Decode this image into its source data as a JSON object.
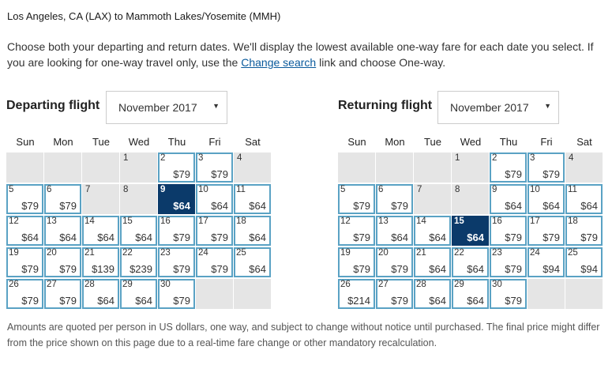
{
  "route": "Los Angeles, CA (LAX) to Mammoth Lakes/Yosemite (MMH)",
  "intro": {
    "before": "Choose both your departing and return dates. We'll display the lowest available one-way fare for each date you select. If you are looking for one-way travel only, use the ",
    "link": "Change search",
    "after": " link and choose One-way."
  },
  "weekdays": [
    "Sun",
    "Mon",
    "Tue",
    "Wed",
    "Thu",
    "Fri",
    "Sat"
  ],
  "departing": {
    "title": "Departing flight",
    "month": "November 2017",
    "caret_icon": "caret-down-icon",
    "weeks": [
      [
        null,
        null,
        null,
        {
          "day": "1"
        },
        {
          "day": "2",
          "price": "$79"
        },
        {
          "day": "3",
          "price": "$79"
        },
        {
          "day": "4"
        }
      ],
      [
        {
          "day": "5",
          "price": "$79"
        },
        {
          "day": "6",
          "price": "$79"
        },
        {
          "day": "7"
        },
        {
          "day": "8"
        },
        {
          "day": "9",
          "price": "$64",
          "selected": true
        },
        {
          "day": "10",
          "price": "$64"
        },
        {
          "day": "11",
          "price": "$64"
        }
      ],
      [
        {
          "day": "12",
          "price": "$64"
        },
        {
          "day": "13",
          "price": "$64"
        },
        {
          "day": "14",
          "price": "$64"
        },
        {
          "day": "15",
          "price": "$64"
        },
        {
          "day": "16",
          "price": "$79"
        },
        {
          "day": "17",
          "price": "$79"
        },
        {
          "day": "18",
          "price": "$64"
        }
      ],
      [
        {
          "day": "19",
          "price": "$79"
        },
        {
          "day": "20",
          "price": "$79"
        },
        {
          "day": "21",
          "price": "$139"
        },
        {
          "day": "22",
          "price": "$239"
        },
        {
          "day": "23",
          "price": "$79"
        },
        {
          "day": "24",
          "price": "$79"
        },
        {
          "day": "25",
          "price": "$64"
        }
      ],
      [
        {
          "day": "26",
          "price": "$79"
        },
        {
          "day": "27",
          "price": "$79"
        },
        {
          "day": "28",
          "price": "$64"
        },
        {
          "day": "29",
          "price": "$64"
        },
        {
          "day": "30",
          "price": "$79"
        },
        null,
        null
      ]
    ]
  },
  "returning": {
    "title": "Returning flight",
    "month": "November 2017",
    "caret_icon": "caret-down-icon",
    "weeks": [
      [
        null,
        null,
        null,
        {
          "day": "1"
        },
        {
          "day": "2",
          "price": "$79"
        },
        {
          "day": "3",
          "price": "$79"
        },
        {
          "day": "4"
        }
      ],
      [
        {
          "day": "5",
          "price": "$79"
        },
        {
          "day": "6",
          "price": "$79"
        },
        {
          "day": "7"
        },
        {
          "day": "8"
        },
        {
          "day": "9",
          "price": "$64"
        },
        {
          "day": "10",
          "price": "$64"
        },
        {
          "day": "11",
          "price": "$64"
        }
      ],
      [
        {
          "day": "12",
          "price": "$79"
        },
        {
          "day": "13",
          "price": "$64"
        },
        {
          "day": "14",
          "price": "$64"
        },
        {
          "day": "15",
          "price": "$64",
          "selected": true
        },
        {
          "day": "16",
          "price": "$79"
        },
        {
          "day": "17",
          "price": "$79"
        },
        {
          "day": "18",
          "price": "$79"
        }
      ],
      [
        {
          "day": "19",
          "price": "$79"
        },
        {
          "day": "20",
          "price": "$79"
        },
        {
          "day": "21",
          "price": "$64"
        },
        {
          "day": "22",
          "price": "$64"
        },
        {
          "day": "23",
          "price": "$79"
        },
        {
          "day": "24",
          "price": "$94"
        },
        {
          "day": "25",
          "price": "$94"
        }
      ],
      [
        {
          "day": "26",
          "price": "$214"
        },
        {
          "day": "27",
          "price": "$79"
        },
        {
          "day": "28",
          "price": "$64"
        },
        {
          "day": "29",
          "price": "$64"
        },
        {
          "day": "30",
          "price": "$79"
        },
        null,
        null
      ]
    ]
  },
  "footer": "Amounts are quoted per person in US dollars, one way, and subject to change without notice until purchased. The final price might differ from the price shown on this page due to a real-time fare change or other mandatory recalculation.",
  "colors": {
    "fare_border": "#5aa2c4",
    "selected_bg": "#0b3a6a",
    "empty_bg": "#e5e5e5",
    "link": "#0a5a9c"
  }
}
